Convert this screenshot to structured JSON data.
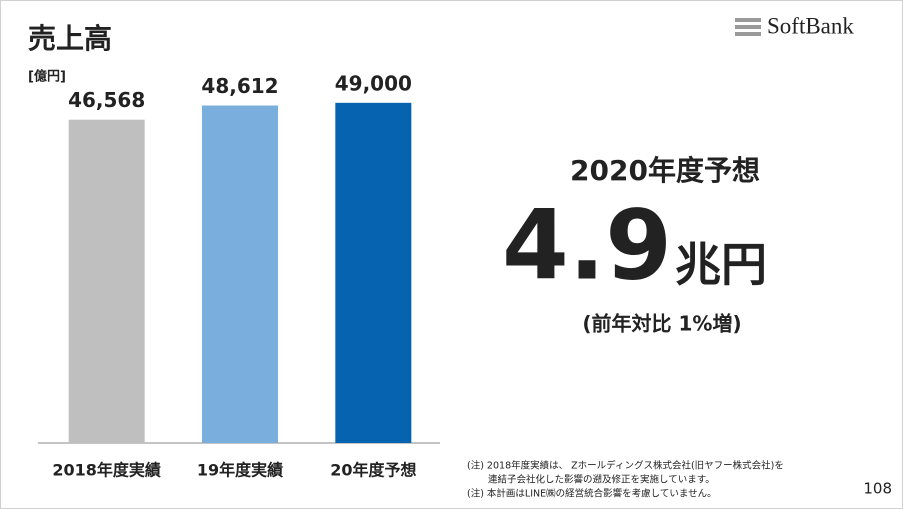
{
  "chart_data": {
    "type": "bar",
    "title": "売上高",
    "y_label": "[億円]",
    "categories": [
      "2018年度実績",
      "19年度実績",
      "20年度予想"
    ],
    "values": [
      46568,
      48612,
      49000
    ],
    "value_labels": [
      "46,568",
      "48,612",
      "49,000"
    ],
    "colors": [
      "#bfbfbf",
      "#7aaedc",
      "#0563b0"
    ],
    "ylim": [
      0,
      52000
    ]
  },
  "highlight": {
    "heading": "2020年度予想",
    "big_number": "4.9",
    "unit": "兆円",
    "change": "(前年対比 1%増)"
  },
  "notes": [
    "(注) 2018年度実績は、 Zホールディングス株式会社(旧ヤフー株式会社)を",
    "連結子会社化した影響の遡及修正を実施しています。",
    "(注) 本計画はLINE㈱の経営統合影響を考慮していません。"
  ],
  "logo": "SoftBank",
  "page_number": "108"
}
